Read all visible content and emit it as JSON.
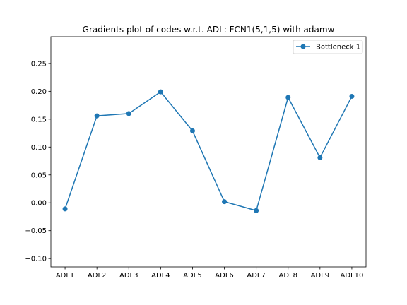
{
  "chart_data": {
    "type": "line",
    "title": "Gradients plot of codes w.r.t. ADL: FCN1(5,1,5) with adamw",
    "xlabel": "",
    "ylabel": "",
    "categories": [
      "ADL1",
      "ADL2",
      "ADL3",
      "ADL4",
      "ADL5",
      "ADL6",
      "ADL7",
      "ADL8",
      "ADL9",
      "ADL10"
    ],
    "series": [
      {
        "name": "Bottleneck 1",
        "color": "#1f77b4",
        "marker": "circle",
        "values": [
          -0.011,
          0.156,
          0.16,
          0.199,
          0.129,
          0.002,
          -0.014,
          0.189,
          0.081,
          0.191
        ]
      }
    ],
    "ylim": [
      -0.115,
      0.298
    ],
    "yticks": [
      -0.1,
      -0.05,
      0.0,
      0.05,
      0.1,
      0.15,
      0.2,
      0.25
    ],
    "ytick_labels": [
      "−0.10",
      "−0.05",
      "0.00",
      "0.05",
      "0.10",
      "0.15",
      "0.20",
      "0.25"
    ],
    "grid": false,
    "legend_position": "top-right"
  }
}
